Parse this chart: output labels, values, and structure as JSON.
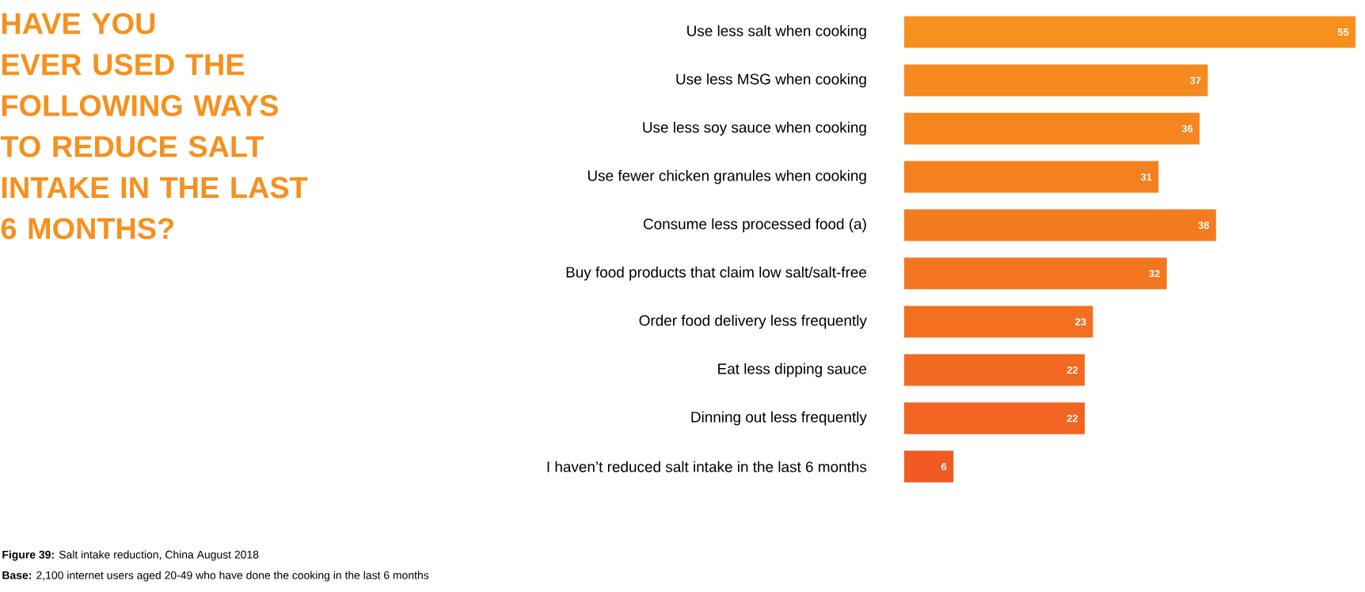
{
  "chart_data": {
    "type": "bar",
    "orientation": "horizontal",
    "title": "HAVE YOU EVER USED THE FOLLOWING WAYS TO REDUCE SALT INTAKE IN THE LAST 6 MONTHS?",
    "categories": [
      "Use less salt when cooking",
      "Use less MSG when cooking",
      "Use less soy sauce when cooking",
      "Use fewer chicken granules when cooking",
      "Consume less processed food (a)",
      "Buy food products that claim low salt/salt-free",
      "Order food delivery less frequently",
      "Eat less dipping sauce",
      "Dinning out less frequently",
      "I haven’t reduced salt intake in the last 6 months"
    ],
    "values": [
      55,
      37,
      36,
      31,
      38,
      32,
      23,
      22,
      22,
      6
    ],
    "colors": [
      "#f7901e",
      "#f68a1e",
      "#f6851f",
      "#f5801f",
      "#f47b20",
      "#f37520",
      "#f37021",
      "#f26a21",
      "#f26422",
      "#f15a22"
    ],
    "data_labels": true,
    "annotations": [
      "**Figure 39:** Salt intake reduction, China August 2018",
      "**Base:** 2,100 internet users aged 20-49 who have done the cooking in the last 6 months"
    ]
  }
}
